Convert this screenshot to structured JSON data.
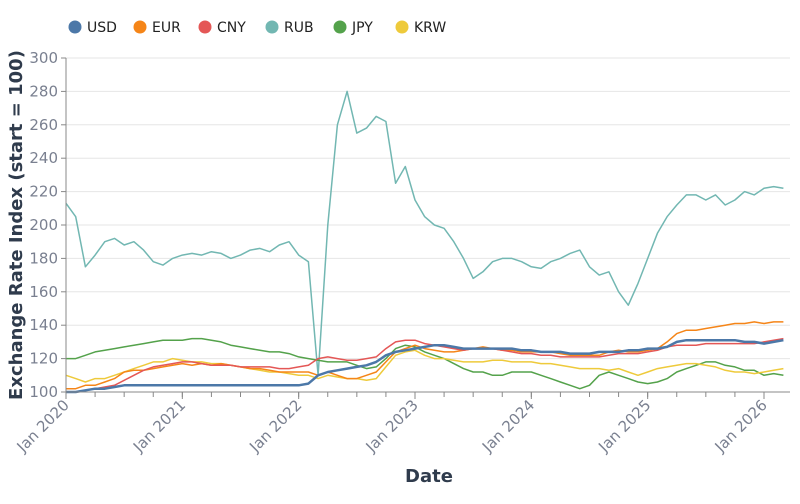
{
  "chart_data": {
    "type": "line",
    "title": "",
    "xlabel": "Date",
    "ylabel": "Exchange Rate Index (start = 100)",
    "ylim": [
      100,
      300
    ],
    "yticks": [
      100,
      120,
      140,
      160,
      180,
      200,
      220,
      240,
      260,
      280,
      300
    ],
    "xticks": [
      "Jan 2020",
      "Jan 2021",
      "Jan 2022",
      "Jan 2023",
      "Jan 2024",
      "Jan 2025",
      "Jan 2026"
    ],
    "grid": true,
    "legend_position": "top",
    "x": [
      "2020-01",
      "2020-02",
      "2020-03",
      "2020-04",
      "2020-05",
      "2020-06",
      "2020-07",
      "2020-08",
      "2020-09",
      "2020-10",
      "2020-11",
      "2020-12",
      "2021-01",
      "2021-02",
      "2021-03",
      "2021-04",
      "2021-05",
      "2021-06",
      "2021-07",
      "2021-08",
      "2021-09",
      "2021-10",
      "2021-11",
      "2021-12",
      "2022-01",
      "2022-02",
      "2022-03",
      "2022-04",
      "2022-05",
      "2022-06",
      "2022-07",
      "2022-08",
      "2022-09",
      "2022-10",
      "2022-11",
      "2022-12",
      "2023-01",
      "2023-02",
      "2023-03",
      "2023-04",
      "2023-05",
      "2023-06",
      "2023-07",
      "2023-08",
      "2023-09",
      "2023-10",
      "2023-11",
      "2023-12",
      "2024-01",
      "2024-02",
      "2024-03",
      "2024-04",
      "2024-05",
      "2024-06",
      "2024-07",
      "2024-08",
      "2024-09",
      "2024-10",
      "2024-11",
      "2024-12",
      "2025-01",
      "2025-02",
      "2025-03",
      "2025-04",
      "2025-05",
      "2025-06",
      "2025-07",
      "2025-08",
      "2025-09",
      "2025-10",
      "2025-11",
      "2025-12",
      "2026-01",
      "2026-02",
      "2026-03"
    ],
    "series": [
      {
        "name": "USD",
        "color": "#4c78a8",
        "values": [
          100,
          100,
          101,
          102,
          102,
          103,
          104,
          104,
          104,
          104,
          104,
          104,
          104,
          104,
          104,
          104,
          104,
          104,
          104,
          104,
          104,
          104,
          104,
          104,
          104,
          105,
          110,
          112,
          113,
          114,
          115,
          116,
          118,
          122,
          124,
          125,
          126,
          127,
          128,
          128,
          127,
          126,
          126,
          126,
          126,
          126,
          126,
          125,
          125,
          124,
          124,
          124,
          123,
          123,
          123,
          124,
          124,
          124,
          125,
          125,
          126,
          126,
          127,
          130,
          131,
          131,
          131,
          131,
          131,
          131,
          130,
          130,
          129,
          130,
          131
        ]
      },
      {
        "name": "EUR",
        "color": "#f58518",
        "values": [
          102,
          102,
          104,
          104,
          106,
          108,
          112,
          113,
          113,
          114,
          115,
          116,
          117,
          116,
          117,
          116,
          117,
          116,
          115,
          114,
          114,
          113,
          112,
          112,
          112,
          112,
          110,
          112,
          110,
          108,
          108,
          110,
          112,
          118,
          124,
          126,
          128,
          126,
          125,
          124,
          124,
          125,
          126,
          127,
          126,
          125,
          125,
          124,
          124,
          124,
          124,
          123,
          122,
          122,
          122,
          122,
          124,
          125,
          124,
          124,
          125,
          126,
          130,
          135,
          137,
          137,
          138,
          139,
          140,
          141,
          141,
          142,
          141,
          142,
          142
        ]
      },
      {
        "name": "CNY",
        "color": "#e45756",
        "values": [
          100,
          100,
          101,
          102,
          103,
          104,
          107,
          110,
          113,
          115,
          116,
          117,
          118,
          118,
          117,
          116,
          116,
          116,
          115,
          115,
          115,
          115,
          114,
          114,
          115,
          116,
          120,
          121,
          120,
          119,
          119,
          120,
          121,
          126,
          130,
          131,
          131,
          129,
          128,
          127,
          126,
          125,
          126,
          126,
          126,
          125,
          124,
          123,
          123,
          122,
          122,
          121,
          121,
          121,
          121,
          121,
          122,
          123,
          123,
          123,
          124,
          125,
          127,
          128,
          128,
          128,
          129,
          129,
          129,
          129,
          129,
          129,
          130,
          131,
          132
        ]
      },
      {
        "name": "RUB",
        "color": "#72b7b2",
        "values": [
          213,
          205,
          175,
          182,
          190,
          192,
          188,
          190,
          185,
          178,
          176,
          180,
          182,
          183,
          182,
          184,
          183,
          180,
          182,
          185,
          186,
          184,
          188,
          190,
          182,
          178,
          110,
          200,
          260,
          280,
          255,
          258,
          265,
          262,
          225,
          235,
          215,
          205,
          200,
          198,
          190,
          180,
          168,
          172,
          178,
          180,
          180,
          178,
          175,
          174,
          178,
          180,
          183,
          185,
          175,
          170,
          172,
          160,
          152,
          165,
          180,
          195,
          205,
          212,
          218,
          218,
          215,
          218,
          212,
          215,
          220,
          218,
          222,
          223,
          222
        ]
      },
      {
        "name": "JPY",
        "color": "#54a24b",
        "values": [
          120,
          120,
          122,
          124,
          125,
          126,
          127,
          128,
          129,
          130,
          131,
          131,
          131,
          132,
          132,
          131,
          130,
          128,
          127,
          126,
          125,
          124,
          124,
          123,
          121,
          120,
          119,
          118,
          118,
          118,
          116,
          114,
          115,
          120,
          126,
          128,
          127,
          124,
          122,
          120,
          117,
          114,
          112,
          112,
          110,
          110,
          112,
          112,
          112,
          110,
          108,
          106,
          104,
          102,
          104,
          110,
          112,
          110,
          108,
          106,
          105,
          106,
          108,
          112,
          114,
          116,
          118,
          118,
          116,
          115,
          113,
          113,
          110,
          111,
          110
        ]
      },
      {
        "name": "KRW",
        "color": "#eeca3b",
        "values": [
          110,
          108,
          106,
          108,
          108,
          110,
          112,
          114,
          116,
          118,
          118,
          120,
          119,
          118,
          118,
          117,
          117,
          116,
          115,
          114,
          113,
          112,
          112,
          111,
          110,
          110,
          108,
          110,
          109,
          108,
          108,
          107,
          108,
          115,
          122,
          124,
          125,
          122,
          120,
          120,
          119,
          118,
          118,
          118,
          119,
          119,
          118,
          118,
          118,
          117,
          117,
          116,
          115,
          114,
          114,
          114,
          113,
          114,
          112,
          110,
          112,
          114,
          115,
          116,
          117,
          117,
          116,
          115,
          113,
          112,
          112,
          111,
          112,
          113,
          114
        ]
      }
    ]
  }
}
